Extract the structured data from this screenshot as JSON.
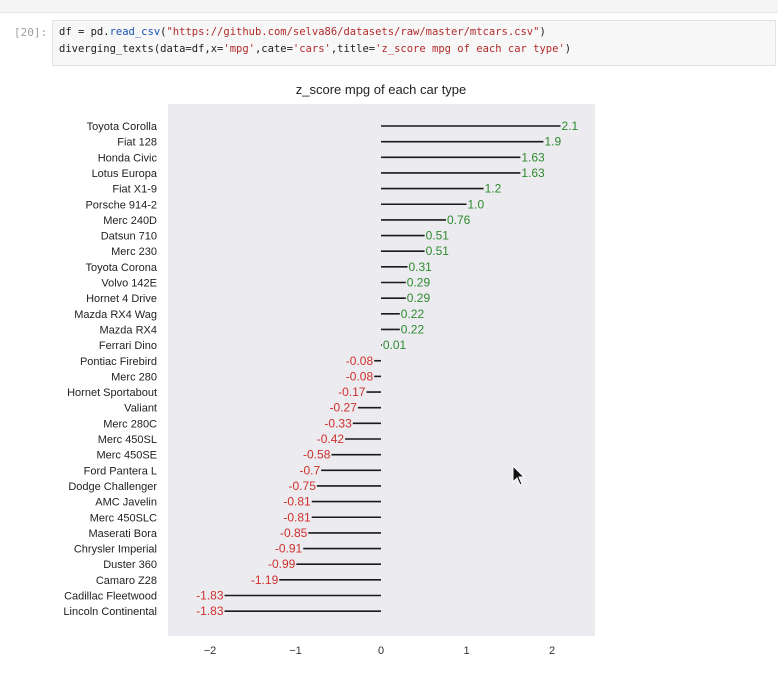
{
  "notebook": {
    "prompt": "[20]:",
    "code_lines": [
      [
        {
          "t": "df = pd.",
          "c": ""
        },
        {
          "t": "read_csv",
          "c": "kw"
        },
        {
          "t": "(",
          "c": ""
        },
        {
          "t": "\"https://github.com/selva86/datasets/raw/master/mtcars.csv\"",
          "c": "str"
        },
        {
          "t": ")",
          "c": ""
        }
      ],
      [
        {
          "t": "diverging_texts(data=df,x=",
          "c": ""
        },
        {
          "t": "'mpg'",
          "c": "str"
        },
        {
          "t": ",cate=",
          "c": ""
        },
        {
          "t": "'cars'",
          "c": "str"
        },
        {
          "t": ",title=",
          "c": ""
        },
        {
          "t": "'z_score mpg of each car type'",
          "c": "str"
        },
        {
          "t": ")",
          "c": ""
        }
      ]
    ]
  },
  "chart_data": {
    "type": "bar",
    "title": "z_score mpg of each car type",
    "orientation": "horizontal",
    "categories": [
      "Toyota Corolla",
      "Fiat 128",
      "Honda Civic",
      "Lotus Europa",
      "Fiat X1-9",
      "Porsche 914-2",
      "Merc 240D",
      "Datsun 710",
      "Merc 230",
      "Toyota Corona",
      "Volvo 142E",
      "Hornet 4 Drive",
      "Mazda RX4 Wag",
      "Mazda RX4",
      "Ferrari Dino",
      "Pontiac Firebird",
      "Merc 280",
      "Hornet Sportabout",
      "Valiant",
      "Merc 280C",
      "Merc 450SL",
      "Merc 450SE",
      "Ford Pantera L",
      "Dodge Challenger",
      "AMC Javelin",
      "Merc 450SLC",
      "Maserati Bora",
      "Chrysler Imperial",
      "Duster 360",
      "Camaro Z28",
      "Cadillac Fleetwood",
      "Lincoln Continental"
    ],
    "values": [
      2.1,
      1.9,
      1.63,
      1.63,
      1.2,
      1.0,
      0.76,
      0.51,
      0.51,
      0.31,
      0.29,
      0.29,
      0.22,
      0.22,
      0.01,
      -0.08,
      -0.08,
      -0.17,
      -0.27,
      -0.33,
      -0.42,
      -0.58,
      -0.7,
      -0.75,
      -0.81,
      -0.81,
      -0.85,
      -0.91,
      -0.99,
      -1.19,
      -1.83,
      -1.83
    ],
    "value_labels": [
      "2.1",
      "1.9",
      "1.63",
      "1.63",
      "1.2",
      "1.0",
      "0.76",
      "0.51",
      "0.51",
      "0.31",
      "0.29",
      "0.29",
      "0.22",
      "0.22",
      "0.01",
      "-0.08",
      "-0.08",
      "-0.17",
      "-0.27",
      "-0.33",
      "-0.42",
      "-0.58",
      "-0.7",
      "-0.75",
      "-0.81",
      "-0.81",
      "-0.85",
      "-0.91",
      "-0.99",
      "-1.19",
      "-1.83",
      "-1.83"
    ],
    "xlim": [
      -2.5,
      2.5
    ],
    "xticks": [
      -2,
      -1,
      0,
      1,
      2
    ],
    "xtick_labels": [
      "−2",
      "−1",
      "0",
      "1",
      "2"
    ],
    "grid": false,
    "colors": {
      "positive_label": "#2e8b2e",
      "negative_label": "#d0312d",
      "line": "#1a1a1a",
      "plot_background": "#ebebf0"
    }
  }
}
